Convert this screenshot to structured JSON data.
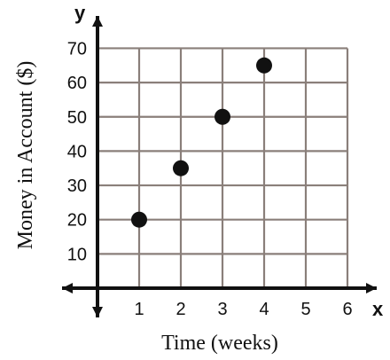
{
  "chart_data": {
    "type": "scatter",
    "title": "",
    "xlabel": "Time (weeks)",
    "ylabel": "Money in Account ($)",
    "x_axis_letter": "x",
    "y_axis_letter": "y",
    "xlim": [
      0,
      6
    ],
    "ylim": [
      0,
      70
    ],
    "xticks": [
      "1",
      "2",
      "3",
      "4",
      "5",
      "6"
    ],
    "yticks": [
      "10",
      "20",
      "30",
      "40",
      "50",
      "60",
      "70"
    ],
    "grid": true,
    "x": [
      1,
      2,
      3,
      4
    ],
    "y": [
      20,
      35,
      50,
      65
    ]
  }
}
